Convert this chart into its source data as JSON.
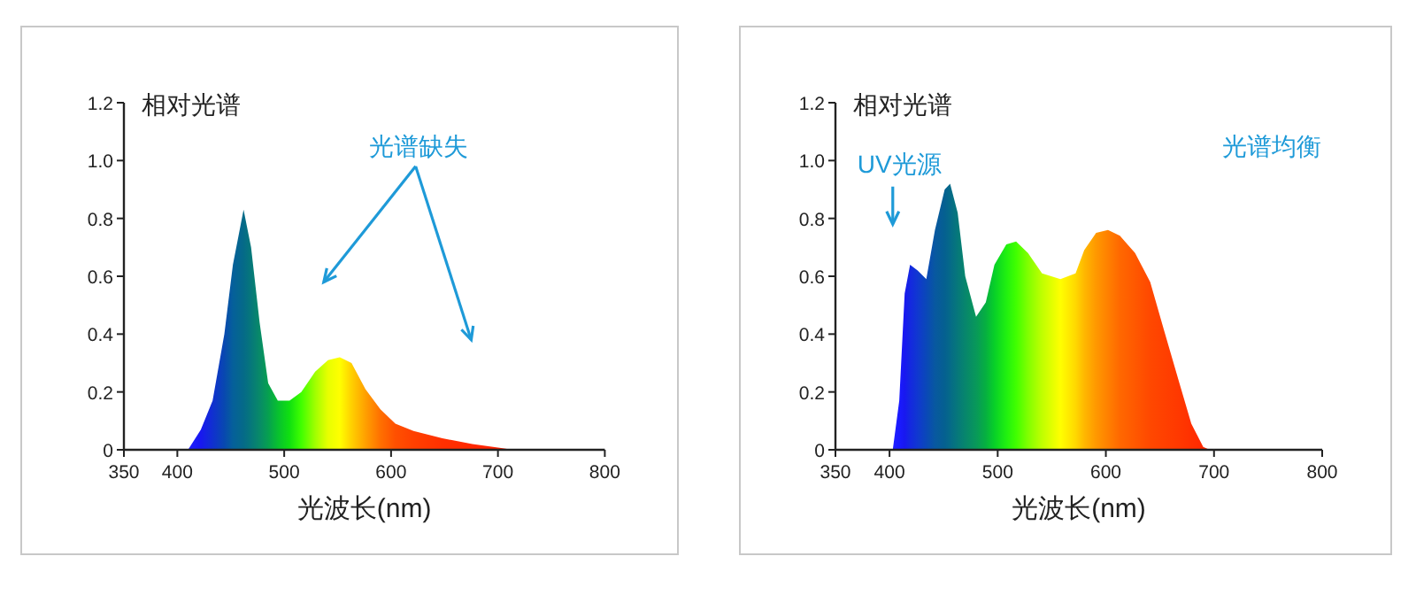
{
  "chart_data": [
    {
      "type": "area",
      "ylabel": "相对光谱",
      "xlabel": "光波长(nm)",
      "annotations": [
        "光谱缺失"
      ],
      "xlim": [
        350,
        800
      ],
      "xticks": [
        350,
        400,
        500,
        600,
        700,
        800
      ],
      "ylim": [
        0,
        1.2
      ],
      "yticks": [
        0,
        {
          "value": 0.2,
          "label": "0.2"
        },
        {
          "value": 0.4,
          "label": "0.4"
        },
        {
          "value": 0.6,
          "label": "0.6"
        },
        {
          "value": 0.8,
          "label": "0.8"
        },
        {
          "value": 1,
          "label": "1.0"
        },
        {
          "value": 1.2,
          "label": "1.2"
        }
      ],
      "x": [
        410,
        422,
        433,
        444,
        452,
        462,
        469,
        477,
        485,
        494,
        505,
        516,
        529,
        541,
        552,
        563,
        576,
        590,
        604,
        621,
        648,
        676,
        703,
        714
      ],
      "values": [
        0,
        0.07,
        0.17,
        0.4,
        0.64,
        0.83,
        0.7,
        0.44,
        0.23,
        0.17,
        0.17,
        0.2,
        0.27,
        0.31,
        0.32,
        0.3,
        0.21,
        0.14,
        0.09,
        0.065,
        0.04,
        0.02,
        0.006,
        0
      ],
      "colors": [
        "#2020ff",
        "#1818f0",
        "#1030d0",
        "#0848b0",
        "#05609a",
        "#056a88",
        "#06787a",
        "#088a68",
        "#06a050",
        "#08c030",
        "#10e010",
        "#40ff00",
        "#a0ff00",
        "#e8ff00",
        "#ffff00",
        "#ffd000",
        "#ffa000",
        "#ff7000",
        "#ff5000",
        "#ff4000",
        "#ff3000",
        "#ff2800",
        "#ff2000",
        "#ff2000"
      ]
    },
    {
      "type": "area",
      "ylabel": "相对光谱",
      "xlabel": "光波长(nm)",
      "annotations": [
        "UV光源",
        "光谱均衡"
      ],
      "xlim": [
        350,
        800
      ],
      "xticks": [
        350,
        400,
        500,
        600,
        700,
        800
      ],
      "ylim": [
        0,
        1.2
      ],
      "yticks": [
        0,
        {
          "value": 0.2,
          "label": "0.2"
        },
        {
          "value": 0.4,
          "label": "0.4"
        },
        {
          "value": 0.6,
          "label": "0.6"
        },
        {
          "value": 0.8,
          "label": "0.8"
        },
        {
          "value": 1,
          "label": "1.0"
        },
        {
          "value": 1.2,
          "label": "1.2"
        }
      ],
      "x": [
        403,
        409,
        414,
        419,
        426,
        434,
        442,
        451,
        456,
        463,
        470,
        480,
        489,
        497,
        508,
        517,
        528,
        541,
        558,
        572,
        580,
        591,
        602,
        613,
        627,
        641,
        654,
        668,
        679,
        690,
        696
      ],
      "values": [
        0,
        0.17,
        0.54,
        0.64,
        0.62,
        0.59,
        0.76,
        0.9,
        0.92,
        0.82,
        0.6,
        0.46,
        0.51,
        0.64,
        0.71,
        0.72,
        0.68,
        0.61,
        0.59,
        0.61,
        0.69,
        0.75,
        0.76,
        0.74,
        0.68,
        0.58,
        0.41,
        0.23,
        0.09,
        0.01,
        0
      ],
      "colors": [
        "#2020ff",
        "#1a1aff",
        "#1818f0",
        "#1428e0",
        "#1038d0",
        "#0a48b8",
        "#0858a0",
        "#056090",
        "#056a88",
        "#06787a",
        "#07866c",
        "#08985a",
        "#06b040",
        "#08d028",
        "#20f010",
        "#40ff00",
        "#80ff00",
        "#c0ff00",
        "#ffff00",
        "#ffd800",
        "#ffb800",
        "#ff9800",
        "#ff8000",
        "#ff6800",
        "#ff5800",
        "#ff4800",
        "#ff4000",
        "#ff3800",
        "#ff3000",
        "#ff2800",
        "#ff2000"
      ]
    }
  ]
}
